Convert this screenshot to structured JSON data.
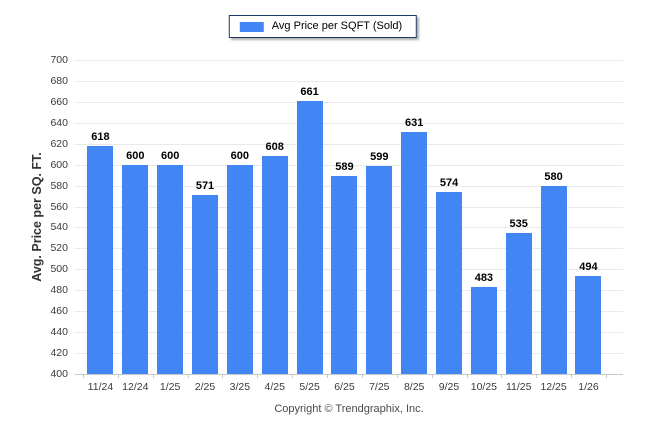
{
  "chart_data": {
    "type": "bar",
    "title": "",
    "legend": "Avg Price per SQFT (Sold)",
    "legend_position": "top-center",
    "categories": [
      "11/24",
      "12/24",
      "1/25",
      "2/25",
      "3/25",
      "4/25",
      "5/25",
      "6/25",
      "7/25",
      "8/25",
      "9/25",
      "10/25",
      "11/25",
      "12/25",
      "1/26"
    ],
    "values": [
      618,
      600,
      600,
      571,
      600,
      608,
      661,
      589,
      599,
      631,
      574,
      483,
      535,
      580,
      494
    ],
    "xlabel": "",
    "ylabel": "Avg. Price per SQ. FT.",
    "ylim": [
      400,
      700
    ],
    "ytick_step": 20,
    "grid": true,
    "bar_color": "#4285f4"
  },
  "colors": {
    "bar": "#4285f4",
    "legend_border": "#1d3a66",
    "gridline": "#e9e9e9",
    "axis_line": "#c9c9c9",
    "tick_text": "#3a3a3a",
    "value_label": "#000000",
    "copyright_text": "#4a4a4a",
    "background": "#ffffff"
  },
  "footer": {
    "copyright": "Copyright © Trendgraphix, Inc."
  }
}
